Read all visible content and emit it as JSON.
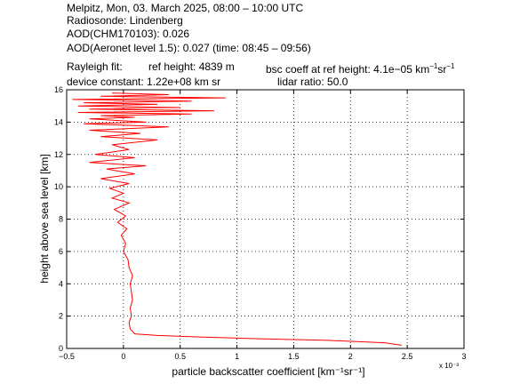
{
  "header": {
    "line1": "Melpitz, Mon, 03. March 2025, 08:00 – 10:00 UTC",
    "line2": "Radiosonde: Lindenberg",
    "line3": "AOD(CHM170103): 0.026",
    "line4": "AOD(Aeronet level 1.5): 0.027   (time: 08:45 – 09:56)",
    "rayleigh_label": "Rayleigh fit:",
    "ref_height": "ref height: 4839 m",
    "bsc_coeff_prefix": "bsc coeff at ref height: 4.1e−05 km",
    "bsc_coeff_exp1": "−1",
    "bsc_coeff_mid": "sr",
    "bsc_coeff_exp2": "−1",
    "device_constant": "device constant: 1.22e+08 km sr",
    "lidar_ratio": "lidar ratio: 50.0"
  },
  "chart_data": {
    "type": "line",
    "xlabel": "particle backscatter coefficient [km⁻¹sr⁻¹]",
    "ylabel": "height above sea level [km]",
    "x_multiplier": "x 10⁻³",
    "xlim": [
      -0.5,
      3
    ],
    "ylim": [
      0,
      16
    ],
    "xticks": [
      "−0.5",
      "0",
      "0.5",
      "1",
      "1.5",
      "2",
      "2.5",
      "3"
    ],
    "yticks": [
      "0",
      "2",
      "4",
      "6",
      "8",
      "10",
      "12",
      "14",
      "16"
    ],
    "grid": true,
    "series": [
      {
        "color": "#ff0000",
        "x": [
          2.45,
          2.3,
          1.8,
          1.2,
          0.7,
          0.3,
          0.1,
          0.06,
          0.05,
          0.07,
          0.06,
          0.08,
          0.07,
          0.06,
          0.08,
          0.05,
          0.04,
          0.0,
          0.02,
          -0.02,
          0.03,
          -0.05,
          0.02,
          -0.08,
          0.05,
          -0.1,
          0.0,
          -0.12,
          0.05,
          -0.2,
          0.1,
          -0.15,
          0.2,
          -0.3,
          0.1,
          -0.25,
          0.05,
          -0.1,
          0.3,
          -0.2,
          0.15,
          -0.3,
          0.4,
          -0.35,
          0.2,
          -0.3,
          0.1,
          -0.2,
          0.6,
          -0.4,
          0.8,
          -0.3,
          0.5,
          -0.4,
          0.3,
          -0.35,
          0.6,
          -0.45,
          0.9,
          -0.2,
          0.4,
          -0.1
        ],
        "y": [
          0.2,
          0.35,
          0.5,
          0.6,
          0.7,
          0.8,
          0.9,
          1.2,
          1.6,
          2.0,
          2.5,
          3.0,
          3.5,
          4.0,
          4.5,
          5.0,
          5.5,
          6.0,
          6.5,
          7.0,
          7.4,
          7.8,
          8.2,
          8.6,
          9.0,
          9.3,
          9.6,
          9.9,
          10.2,
          10.5,
          10.8,
          11.1,
          11.3,
          11.5,
          11.8,
          12.0,
          12.3,
          12.6,
          12.9,
          13.1,
          13.3,
          13.5,
          13.7,
          13.9,
          14.0,
          14.2,
          14.3,
          14.4,
          14.5,
          14.6,
          14.7,
          14.8,
          14.9,
          15.0,
          15.1,
          15.2,
          15.3,
          15.4,
          15.5,
          15.6,
          15.7,
          15.8
        ]
      }
    ]
  }
}
